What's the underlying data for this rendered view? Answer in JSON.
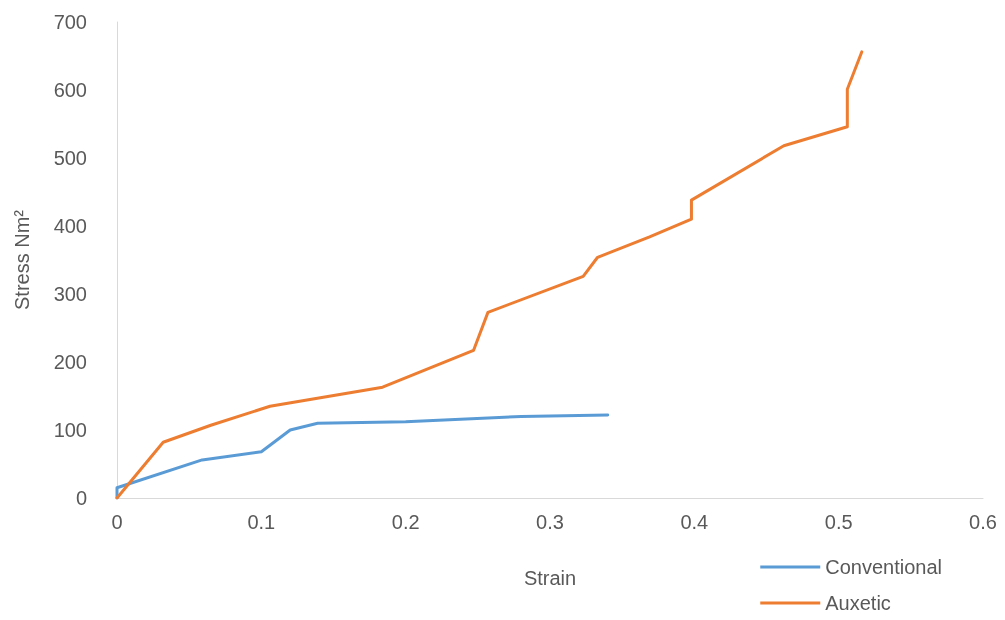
{
  "chart_data": {
    "type": "line",
    "xlabel": "Strain",
    "ylabel": "Stress Nm²",
    "xlim": [
      0,
      0.6
    ],
    "xticks": [
      0,
      0.1,
      0.2,
      0.3,
      0.4,
      0.5,
      0.6
    ],
    "ylim": [
      0,
      700
    ],
    "yticks": [
      0,
      100,
      200,
      300,
      400,
      500,
      600,
      700
    ],
    "grid": false,
    "legend": "bottom right",
    "marker": "none",
    "line_style": "solid",
    "series": [
      {
        "name": "Conventional",
        "color": "#5b9bd5",
        "x": [
          0,
          0,
          0.059,
          0.1,
          0.12,
          0.139,
          0.2,
          0.28,
          0.34
        ],
        "values": [
          0,
          15,
          56,
          68,
          100,
          110,
          112,
          120,
          122
        ]
      },
      {
        "name": "Auxetic",
        "color": "#ed7d31",
        "x": [
          0,
          0.032,
          0.065,
          0.106,
          0.184,
          0.247,
          0.257,
          0.323,
          0.333,
          0.369,
          0.398,
          0.398,
          0.462,
          0.506,
          0.506,
          0.516
        ],
        "values": [
          0,
          82,
          107,
          135,
          163,
          217,
          273,
          326,
          354,
          384,
          410,
          438,
          518,
          546,
          601,
          656
        ]
      }
    ]
  }
}
